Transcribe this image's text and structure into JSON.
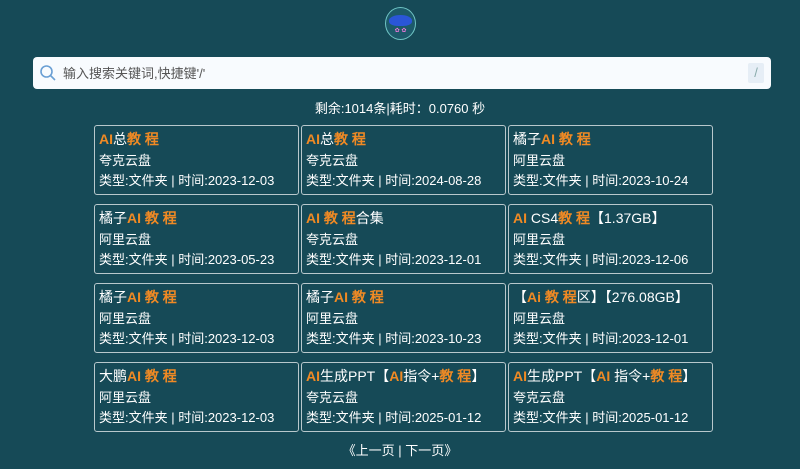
{
  "search": {
    "placeholder": "输入搜索关键词,快捷键'/'",
    "shortcut": "/"
  },
  "stats": "剩余:1014条|耗时：0.0760 秒",
  "accent": "#f08a24",
  "results": [
    {
      "title": [
        [
          "AI",
          1
        ],
        [
          "总",
          0
        ],
        [
          "教 程",
          1
        ]
      ],
      "disk": "夸克云盘",
      "meta": "类型:文件夹 | 时间:2023-12-03"
    },
    {
      "title": [
        [
          "AI",
          1
        ],
        [
          "总",
          0
        ],
        [
          "教 程",
          1
        ]
      ],
      "disk": "夸克云盘",
      "meta": "类型:文件夹 | 时间:2024-08-28"
    },
    {
      "title": [
        [
          "橘子",
          0
        ],
        [
          "AI 教 程",
          1
        ]
      ],
      "disk": "阿里云盘",
      "meta": "类型:文件夹 | 时间:2023-10-24"
    },
    {
      "title": [
        [
          "橘子",
          0
        ],
        [
          "AI 教 程",
          1
        ]
      ],
      "disk": "阿里云盘",
      "meta": "类型:文件夹 | 时间:2023-05-23"
    },
    {
      "title": [
        [
          "AI 教 程",
          1
        ],
        [
          "合集",
          0
        ]
      ],
      "disk": "夸克云盘",
      "meta": "类型:文件夹 | 时间:2023-12-01"
    },
    {
      "title": [
        [
          "AI",
          1
        ],
        [
          " CS4",
          0
        ],
        [
          "教 程",
          1
        ],
        [
          "【1.37GB】",
          0
        ]
      ],
      "disk": "阿里云盘",
      "meta": "类型:文件夹 | 时间:2023-12-06"
    },
    {
      "title": [
        [
          "橘子",
          0
        ],
        [
          "AI 教 程",
          1
        ]
      ],
      "disk": "阿里云盘",
      "meta": "类型:文件夹 | 时间:2023-12-03"
    },
    {
      "title": [
        [
          "橘子",
          0
        ],
        [
          "AI 教 程",
          1
        ]
      ],
      "disk": "阿里云盘",
      "meta": "类型:文件夹 | 时间:2023-10-23"
    },
    {
      "title": [
        [
          "【",
          0
        ],
        [
          "Ai  教 程",
          1
        ],
        [
          "区】【276.08GB】",
          0
        ]
      ],
      "disk": "阿里云盘",
      "meta": "类型:文件夹 | 时间:2023-12-01"
    },
    {
      "title": [
        [
          "大鹏",
          0
        ],
        [
          "AI 教 程",
          1
        ]
      ],
      "disk": "阿里云盘",
      "meta": "类型:文件夹 | 时间:2023-12-03"
    },
    {
      "title": [
        [
          "AI",
          1
        ],
        [
          "生成PPT【",
          0
        ],
        [
          "AI",
          1
        ],
        [
          "指令+",
          0
        ],
        [
          "教 程",
          1
        ],
        [
          "】",
          0
        ]
      ],
      "disk": "夸克云盘",
      "meta": "类型:文件夹 | 时间:2025-01-12"
    },
    {
      "title": [
        [
          "AI",
          1
        ],
        [
          "生成PPT【",
          0
        ],
        [
          "AI ",
          1
        ],
        [
          "指令+",
          0
        ],
        [
          "教 程",
          1
        ],
        [
          "】",
          0
        ]
      ],
      "disk": "夸克云盘",
      "meta": "类型:文件夹 | 时间:2025-01-12"
    }
  ],
  "pager": {
    "open": "《",
    "prev": "上一页",
    "sep": " | ",
    "next": "下一页",
    "close": "》"
  }
}
